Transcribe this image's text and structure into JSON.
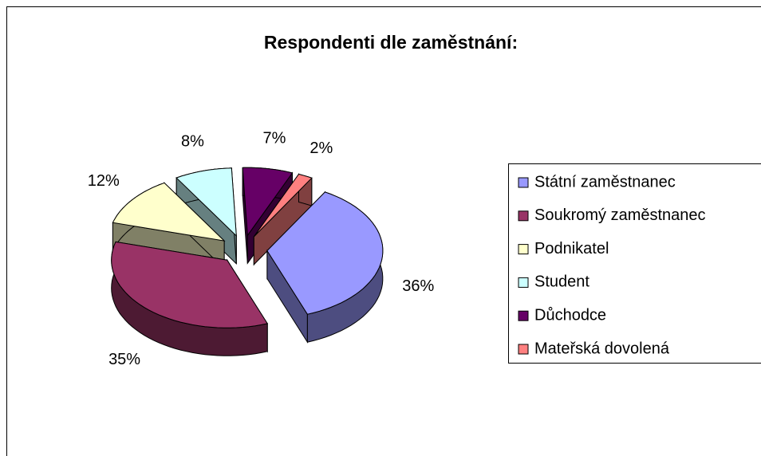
{
  "chart_data": {
    "type": "pie3d",
    "title": "Respondenti dle zaměstnání:",
    "categories": [
      "Státní zaměstnanec",
      "Soukromý zaměstnanec",
      "Podnikatel",
      "Student",
      "Důchodce",
      "Mateřská dovolená"
    ],
    "values": [
      36,
      35,
      12,
      8,
      7,
      2
    ],
    "value_labels": [
      "36%",
      "35%",
      "12%",
      "8%",
      "7%",
      "2%"
    ],
    "colors": [
      "#9999ff",
      "#993366",
      "#ffffcc",
      "#ccffff",
      "#660066",
      "#ff8080"
    ],
    "legend": "right"
  }
}
